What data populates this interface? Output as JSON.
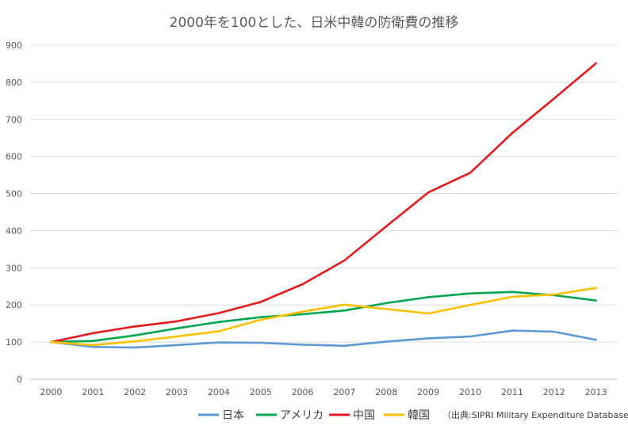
{
  "chart_data": {
    "type": "line",
    "title": "2000年を100とした、日米中韓の防衛費の推移",
    "x": [
      "2000",
      "2001",
      "2002",
      "2003",
      "2004",
      "2005",
      "2006",
      "2007",
      "2008",
      "2009",
      "2010",
      "2011",
      "2012",
      "2013"
    ],
    "ylim": [
      0,
      900
    ],
    "yticks": [
      "0",
      "100",
      "200",
      "300",
      "400",
      "500",
      "600",
      "700",
      "800",
      "900"
    ],
    "grid": true,
    "legend_position": "bottom",
    "series": [
      {
        "name": "日本",
        "color": "#5b9bd5",
        "values": [
          100,
          87,
          85,
          92,
          99,
          98,
          93,
          90,
          101,
          110,
          115,
          131,
          128,
          106
        ]
      },
      {
        "name": "アメリカ",
        "color": "#00a650",
        "values": [
          100,
          103,
          118,
          137,
          154,
          167,
          175,
          185,
          205,
          221,
          231,
          235,
          226,
          212
        ]
      },
      {
        "name": "中国",
        "color": "#e41a1c",
        "values": [
          100,
          124,
          142,
          156,
          178,
          208,
          256,
          320,
          412,
          503,
          556,
          663,
          756,
          851
        ]
      },
      {
        "name": "韓国",
        "color": "#ffc000",
        "values": [
          100,
          92,
          102,
          115,
          129,
          160,
          182,
          201,
          189,
          177,
          200,
          222,
          228,
          246
        ]
      }
    ],
    "source_note": "（出典:SIPRI Military Expenditure Database）"
  }
}
